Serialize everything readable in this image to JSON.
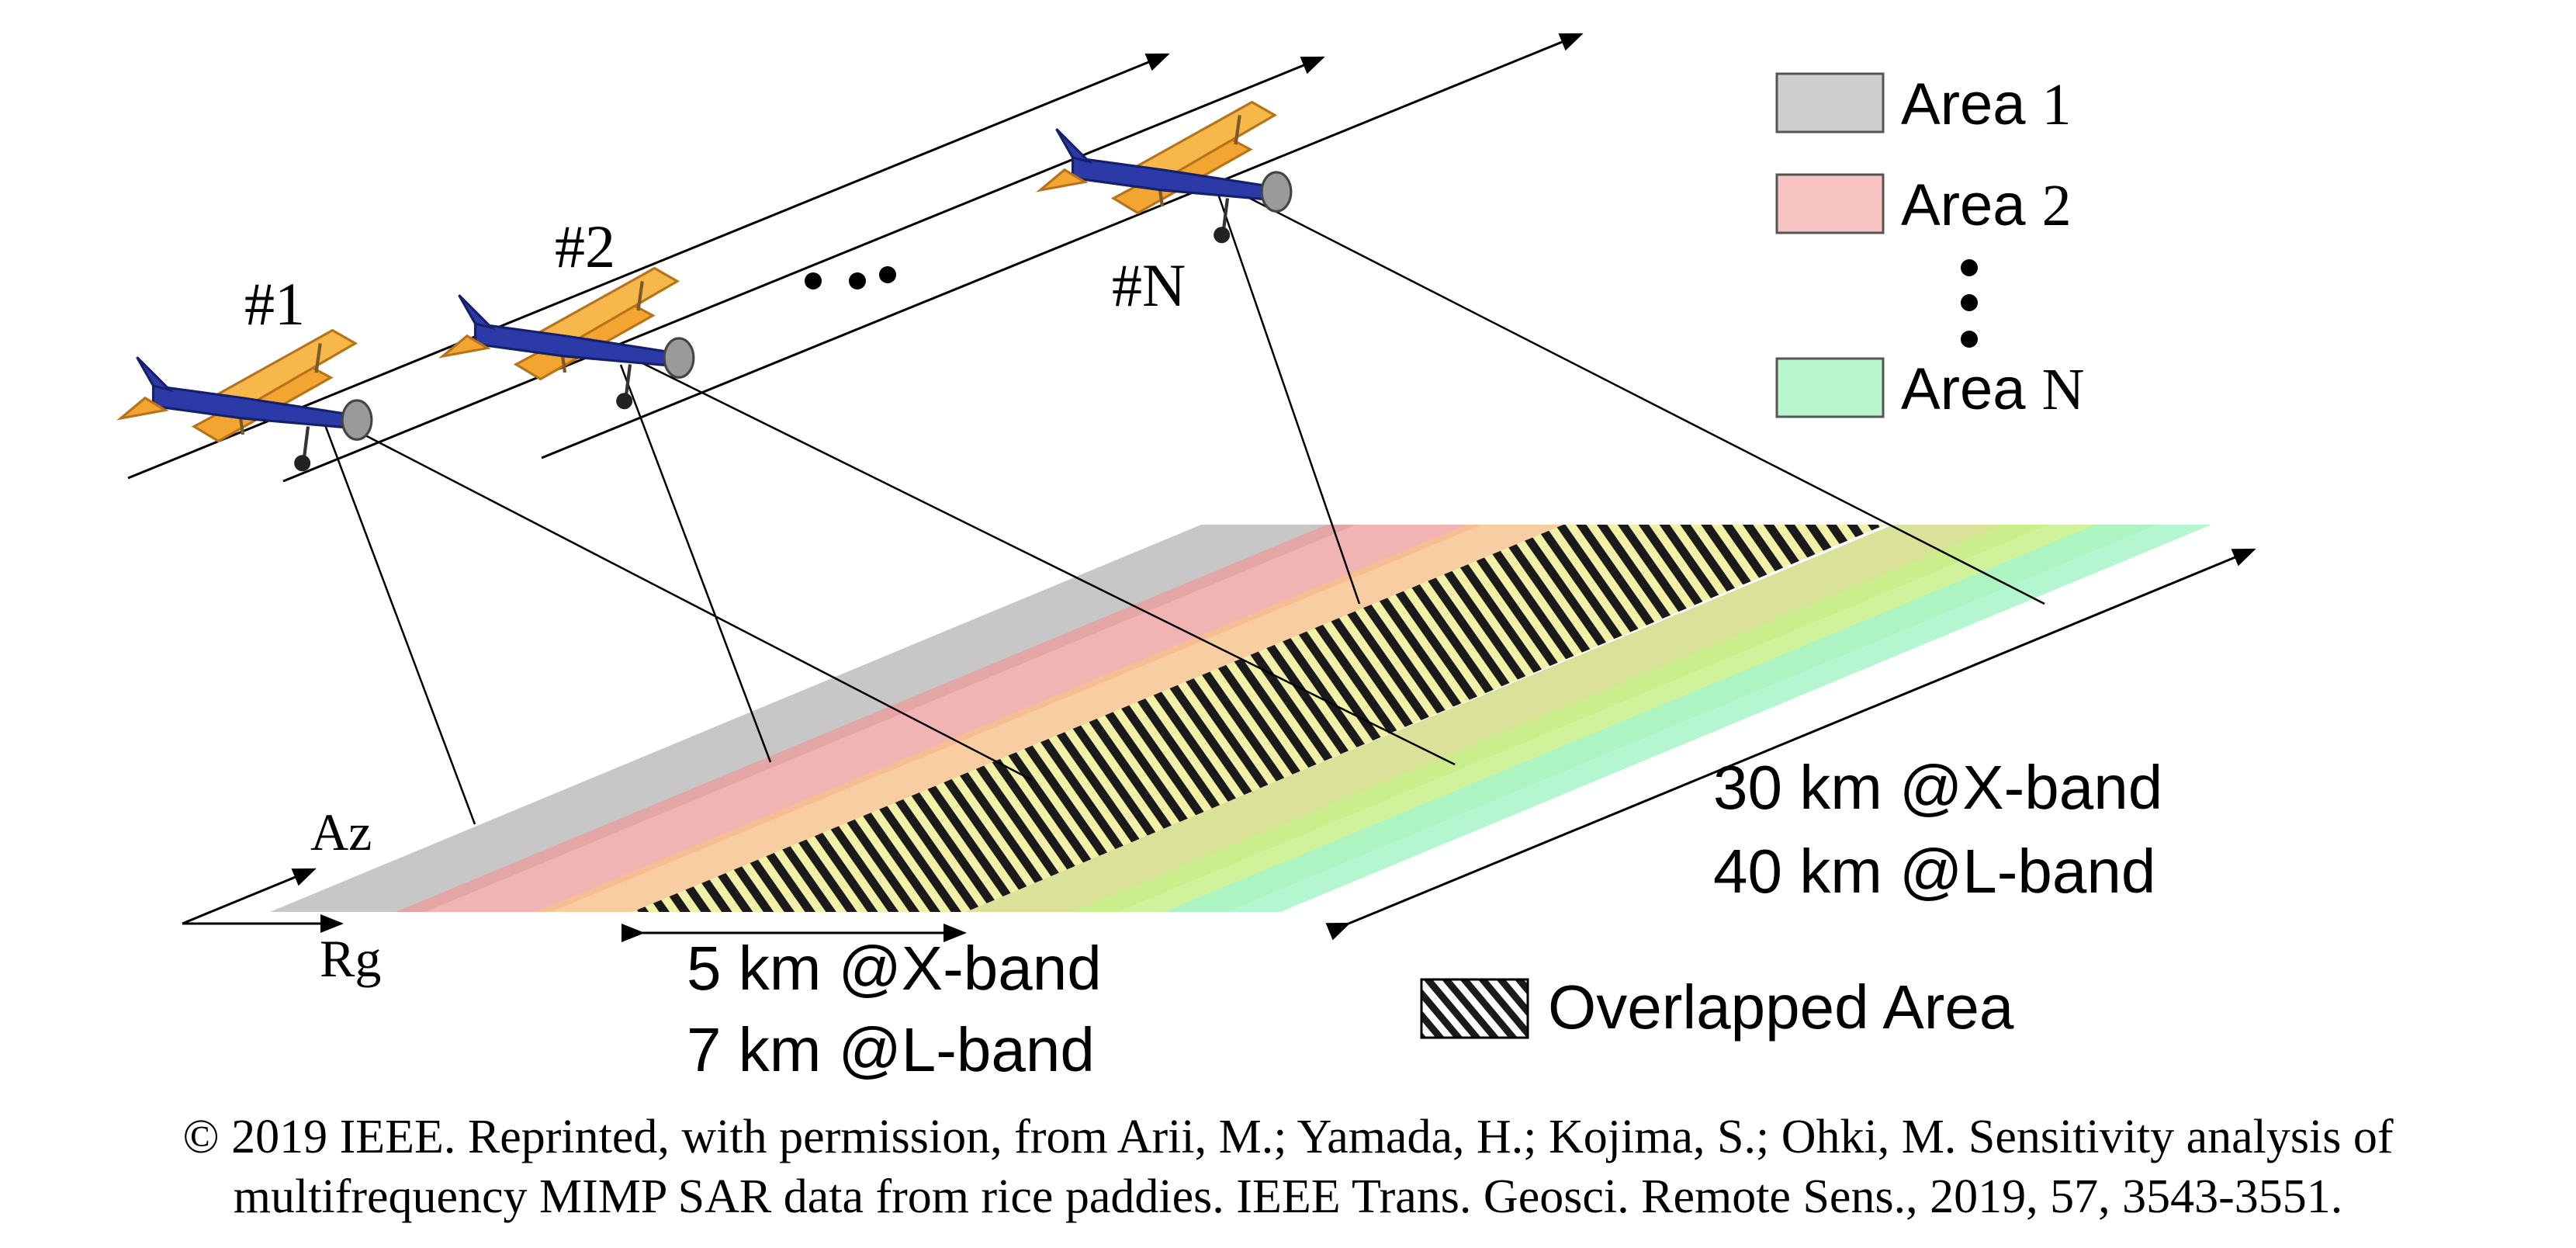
{
  "labels": {
    "plane_1": "#1",
    "plane_2": "#2",
    "plane_n": "#N",
    "azimuth": "Az",
    "range": "Rg",
    "swath_width_x": "5 km @X-band",
    "swath_width_l": "7 km @L-band",
    "swath_length_x": "30 km @X-band",
    "swath_length_l": "40 km @L-band"
  },
  "legend": {
    "areas": [
      {
        "label_word": "Area",
        "label_index": "1",
        "color": "#cfcfcf"
      },
      {
        "label_word": "Area",
        "label_index": "2",
        "color": "#f9c4c4"
      },
      {
        "label_word": "Area",
        "label_index": "N",
        "color": "#b8f5cd"
      }
    ],
    "overlap_label": "Overlapped Area"
  },
  "colors": {
    "area_1": "#b4b4b4",
    "area_2": "#ee9a9a",
    "area_3": "#f6c08a",
    "area_4": "#d4dc86",
    "area_5": "#c7f08a",
    "area_n": "#a6f5c8",
    "overlap_stripe": "#1a1a1a",
    "overlap_fill": "#f3f0a8",
    "plane_body": "#f2a531",
    "plane_fuselage": "#2b3aa6"
  },
  "icons": {
    "plane": "biplane-icon"
  },
  "caption": {
    "line1": "© 2019 IEEE. Reprinted, with permission, from Arii, M.; Yamada, H.; Kojima, S.; Ohki, M. Sensitivity analysis of",
    "line2": "multifrequency MIMP SAR data from rice paddies. IEEE Trans. Geosci. Remote Sens., 2019, 57, 3543-3551."
  }
}
